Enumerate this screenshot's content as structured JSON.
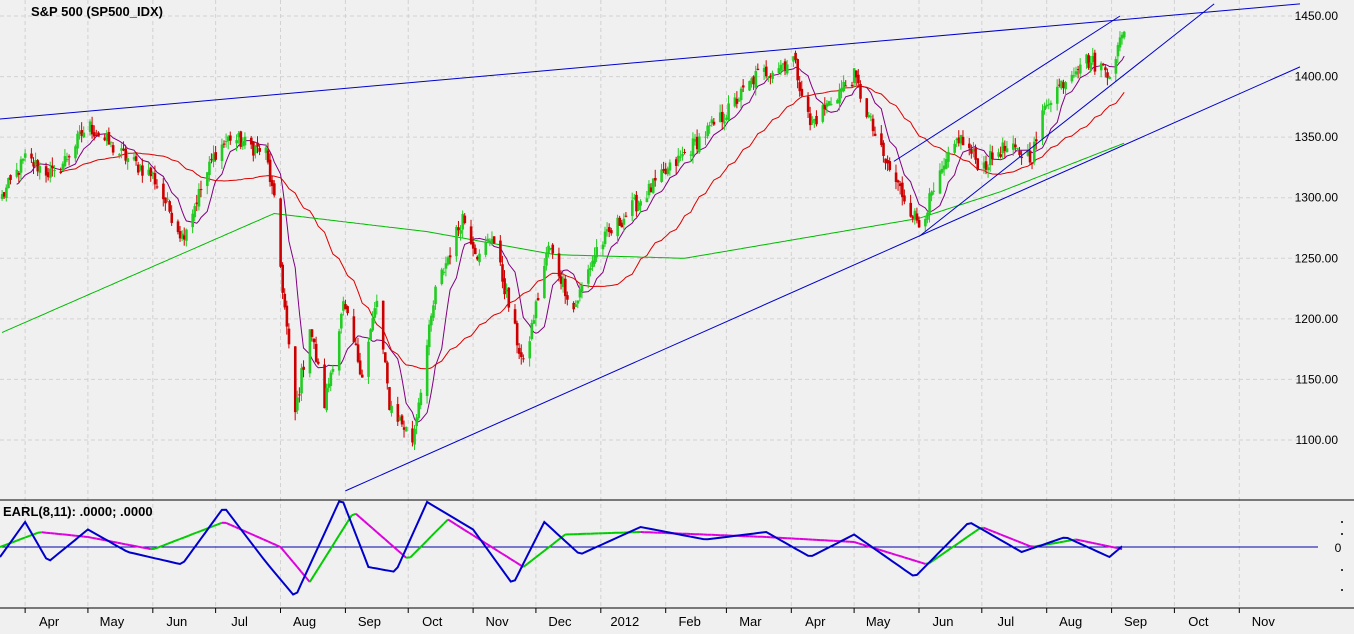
{
  "chart_data": [
    {
      "type": "candlestick",
      "title": "S&P 500 (SP500_IDX)",
      "ylim": [
        1060,
        1460
      ],
      "yticks": [
        "1450.00",
        "1400.00",
        "1350.00",
        "1300.00",
        "1250.00",
        "1200.00",
        "1150.00",
        "1100.00"
      ],
      "x_months": [
        "Apr",
        "May",
        "Jun",
        "Jul",
        "Aug",
        "Sep",
        "Oct",
        "Nov",
        "Dec",
        "2012",
        "Feb",
        "Mar",
        "Apr",
        "May",
        "Jun",
        "Jul",
        "Aug",
        "Sep",
        "Oct",
        "Nov"
      ],
      "grid": true,
      "close_anchors": [
        [
          "2011-03-20",
          1298
        ],
        [
          "2011-04-01",
          1332
        ],
        [
          "2011-04-15",
          1318
        ],
        [
          "2011-05-01",
          1360
        ],
        [
          "2011-05-15",
          1338
        ],
        [
          "2011-06-01",
          1318
        ],
        [
          "2011-06-15",
          1268
        ],
        [
          "2011-07-01",
          1338
        ],
        [
          "2011-07-08",
          1350
        ],
        [
          "2011-07-25",
          1337
        ],
        [
          "2011-07-29",
          1295
        ],
        [
          "2011-08-08",
          1122
        ],
        [
          "2011-08-15",
          1195
        ],
        [
          "2011-08-22",
          1130
        ],
        [
          "2011-08-31",
          1210
        ],
        [
          "2011-09-09",
          1155
        ],
        [
          "2011-09-16",
          1215
        ],
        [
          "2011-09-22",
          1130
        ],
        [
          "2011-10-03",
          1100
        ],
        [
          "2011-10-14",
          1222
        ],
        [
          "2011-10-27",
          1285
        ],
        [
          "2011-11-04",
          1250
        ],
        [
          "2011-11-10",
          1270
        ],
        [
          "2011-11-25",
          1160
        ],
        [
          "2011-12-07",
          1260
        ],
        [
          "2011-12-19",
          1208
        ],
        [
          "2011-12-30",
          1258
        ],
        [
          "2012-01-15",
          1290
        ],
        [
          "2012-02-01",
          1320
        ],
        [
          "2012-02-15",
          1345
        ],
        [
          "2012-03-01",
          1370
        ],
        [
          "2012-03-15",
          1400
        ],
        [
          "2012-04-02",
          1415
        ],
        [
          "2012-04-10",
          1360
        ],
        [
          "2012-04-25",
          1390
        ],
        [
          "2012-05-01",
          1400
        ],
        [
          "2012-05-15",
          1332
        ],
        [
          "2012-06-01",
          1278
        ],
        [
          "2012-06-20",
          1350
        ],
        [
          "2012-07-01",
          1325
        ],
        [
          "2012-07-10",
          1340
        ],
        [
          "2012-07-25",
          1335
        ],
        [
          "2012-08-01",
          1380
        ],
        [
          "2012-08-18",
          1415
        ],
        [
          "2012-08-31",
          1405
        ],
        [
          "2012-09-07",
          1437
        ]
      ],
      "moving_averages": [
        {
          "period": 10,
          "color": "#800080"
        },
        {
          "period": 40,
          "color": "#dd0000"
        },
        {
          "period": 200,
          "color": "#00bb00"
        }
      ],
      "trendlines": [
        {
          "from": [
            "2011-03-20",
            1365
          ],
          "to": [
            "2012-11-30",
            1460
          ],
          "color": "#0000cc"
        },
        {
          "from": [
            "2011-09-01",
            1058
          ],
          "to": [
            "2012-11-30",
            1408
          ],
          "color": "#0000cc"
        },
        {
          "from": [
            "2012-05-20",
            1330
          ],
          "to": [
            "2012-09-05",
            1450
          ],
          "color": "#0000cc"
        },
        {
          "from": [
            "2012-06-01",
            1268
          ],
          "to": [
            "2012-10-20",
            1460
          ],
          "color": "#0000cc"
        }
      ],
      "colors": {
        "up": "#22cc22",
        "down": "#cc0000",
        "background": "#f0f0f0"
      }
    },
    {
      "type": "line",
      "title": "EARL(8,11): .0000; .0000",
      "zero_label": "0",
      "ylim": [
        -1.1,
        1.1
      ],
      "series": [
        {
          "name": "",
          "color": "#0000cc",
          "anchors": [
            [
              "2011-03-20",
              -0.2
            ],
            [
              "2011-04-01",
              0.5
            ],
            [
              "2011-04-12",
              -0.3
            ],
            [
              "2011-05-01",
              0.35
            ],
            [
              "2011-05-20",
              -0.1
            ],
            [
              "2011-06-15",
              -0.35
            ],
            [
              "2011-07-05",
              0.8
            ],
            [
              "2011-07-25",
              -0.3
            ],
            [
              "2011-08-08",
              -1.0
            ],
            [
              "2011-08-30",
              1.0
            ],
            [
              "2011-09-12",
              -0.4
            ],
            [
              "2011-09-25",
              -0.5
            ],
            [
              "2011-10-10",
              0.9
            ],
            [
              "2011-11-01",
              0.35
            ],
            [
              "2011-11-20",
              -0.75
            ],
            [
              "2011-12-05",
              0.5
            ],
            [
              "2011-12-22",
              -0.15
            ],
            [
              "2012-01-20",
              0.4
            ],
            [
              "2012-02-20",
              0.15
            ],
            [
              "2012-03-20",
              0.3
            ],
            [
              "2012-04-10",
              -0.2
            ],
            [
              "2012-05-01",
              0.25
            ],
            [
              "2012-05-30",
              -0.6
            ],
            [
              "2012-06-25",
              0.5
            ],
            [
              "2012-07-20",
              -0.1
            ],
            [
              "2012-08-10",
              0.2
            ],
            [
              "2012-08-31",
              -0.2
            ],
            [
              "2012-09-07",
              0.05
            ]
          ]
        },
        {
          "name": "",
          "color": "#00cc00",
          "anchors": [
            [
              "2011-03-20",
              0.0
            ],
            [
              "2011-04-08",
              0.3
            ],
            [
              "2011-05-01",
              0.2
            ],
            [
              "2011-06-01",
              -0.05
            ],
            [
              "2011-07-05",
              0.5
            ],
            [
              "2011-08-01",
              0.0
            ],
            [
              "2011-08-15",
              -0.7
            ],
            [
              "2011-09-05",
              0.7
            ],
            [
              "2011-10-01",
              -0.25
            ],
            [
              "2011-10-20",
              0.55
            ],
            [
              "2011-11-25",
              -0.4
            ],
            [
              "2011-12-15",
              0.25
            ],
            [
              "2012-01-20",
              0.3
            ],
            [
              "2012-03-20",
              0.2
            ],
            [
              "2012-05-01",
              0.1
            ],
            [
              "2012-06-05",
              -0.35
            ],
            [
              "2012-07-01",
              0.4
            ],
            [
              "2012-07-25",
              0.0
            ],
            [
              "2012-08-15",
              0.15
            ],
            [
              "2012-09-07",
              -0.05
            ]
          ]
        }
      ],
      "colors": {
        "declining": "#dd00dd"
      }
    }
  ]
}
